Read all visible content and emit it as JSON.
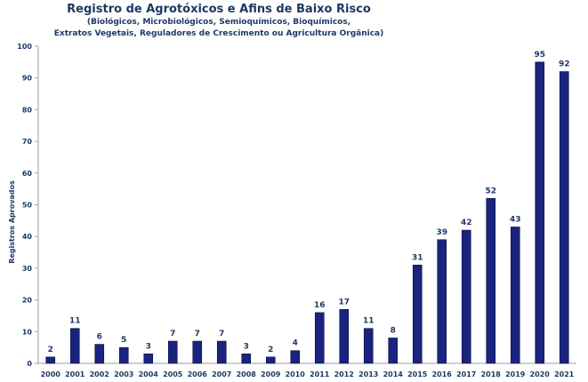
{
  "chart_data": {
    "type": "bar",
    "title": "Registro de Agrotóxicos e Afins de Baixo Risco",
    "subtitle_lines": [
      "(Biológicos, Microbiológicos, Semioquímicos, Bioquímicos,",
      "Extratos Vegetais, Reguladores de Crescimento ou Agricultura Orgânica)"
    ],
    "xlabel": "",
    "ylabel": "Registros Aprovados",
    "categories": [
      "2000",
      "2001",
      "2002",
      "2003",
      "2004",
      "2005",
      "2006",
      "2007",
      "2008",
      "2009",
      "2010",
      "2011",
      "2012",
      "2013",
      "2014",
      "2015",
      "2016",
      "2017",
      "2018",
      "2019",
      "2020",
      "2021"
    ],
    "values": [
      2,
      11,
      6,
      5,
      3,
      7,
      7,
      7,
      3,
      2,
      4,
      16,
      17,
      11,
      8,
      31,
      39,
      42,
      52,
      43,
      95,
      92
    ],
    "ylim": [
      0,
      100
    ],
    "yticks": [
      0,
      10,
      20,
      30,
      40,
      50,
      60,
      70,
      80,
      90,
      100
    ],
    "grid": false,
    "legend": "none",
    "colors": {
      "bar": "#1a237e",
      "bar_edge": "#0d124a",
      "text": "#1f3864",
      "axis": "#9e9e9e"
    }
  }
}
